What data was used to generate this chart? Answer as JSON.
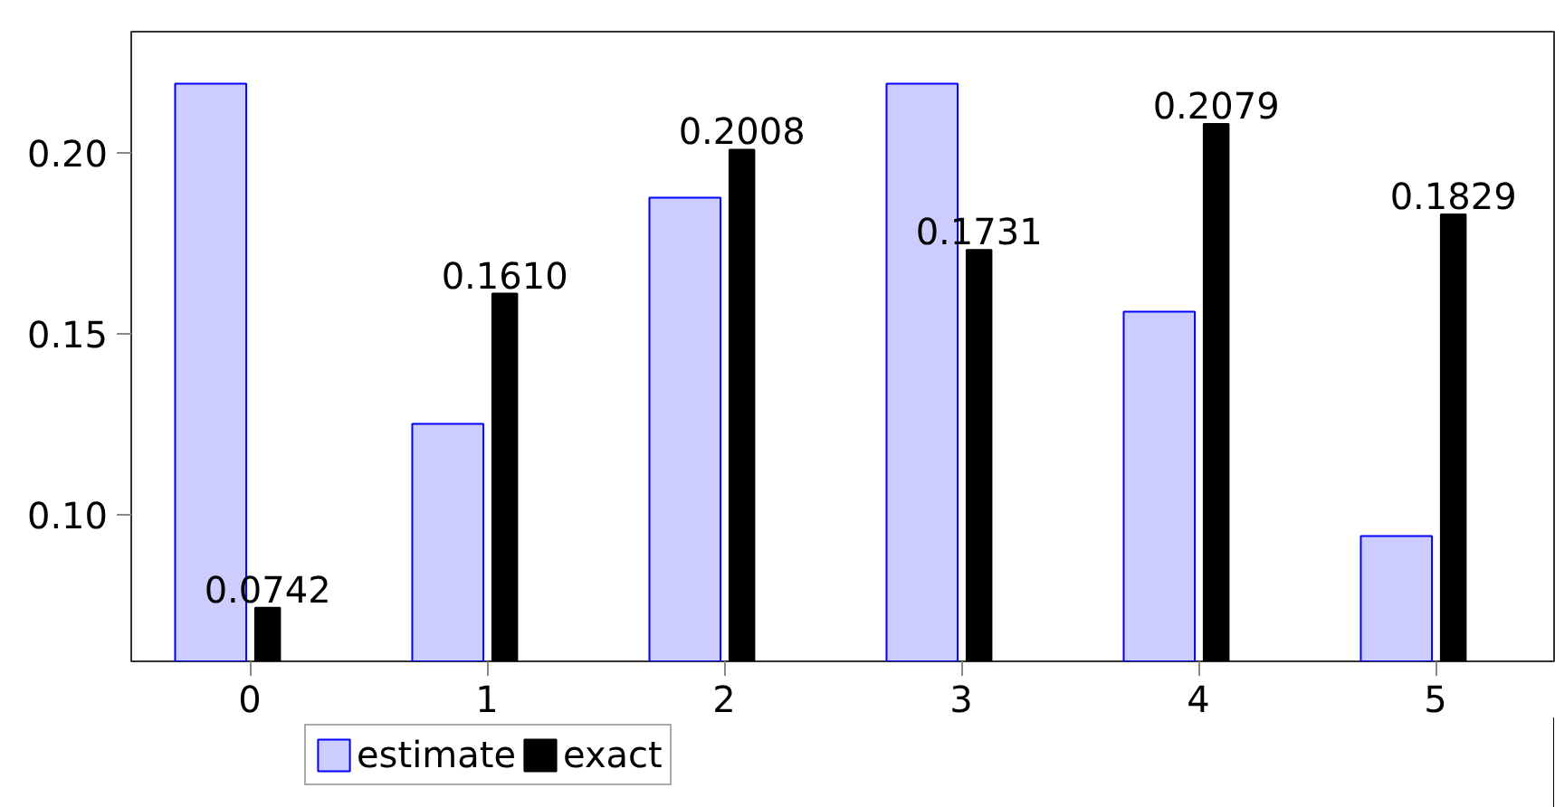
{
  "chart_data": {
    "type": "bar",
    "x": [
      0,
      1,
      2,
      3,
      4,
      5
    ],
    "xlim": [
      -0.5,
      5.5
    ],
    "xticks": [
      0,
      1,
      2,
      3,
      4,
      5
    ],
    "ylim": [
      0.0594,
      0.2334
    ],
    "yticks": [
      {
        "value": 0.1,
        "label": "0.10"
      },
      {
        "value": 0.15,
        "label": "0.15"
      },
      {
        "value": 0.2,
        "label": "0.20"
      }
    ],
    "series": [
      {
        "name": "estimate",
        "color": "#ccccff",
        "values": [
          0.219,
          0.125,
          0.1875,
          0.219,
          0.156,
          0.094
        ]
      },
      {
        "name": "exact",
        "color": "#000000",
        "values": [
          0.0742,
          0.161,
          0.2008,
          0.1731,
          0.2079,
          0.1829
        ],
        "value_labels": [
          "0.0742",
          "0.1610",
          "0.2008",
          "0.1731",
          "0.2079",
          "0.1829"
        ]
      }
    ],
    "grid": false,
    "legend": "bottom"
  }
}
